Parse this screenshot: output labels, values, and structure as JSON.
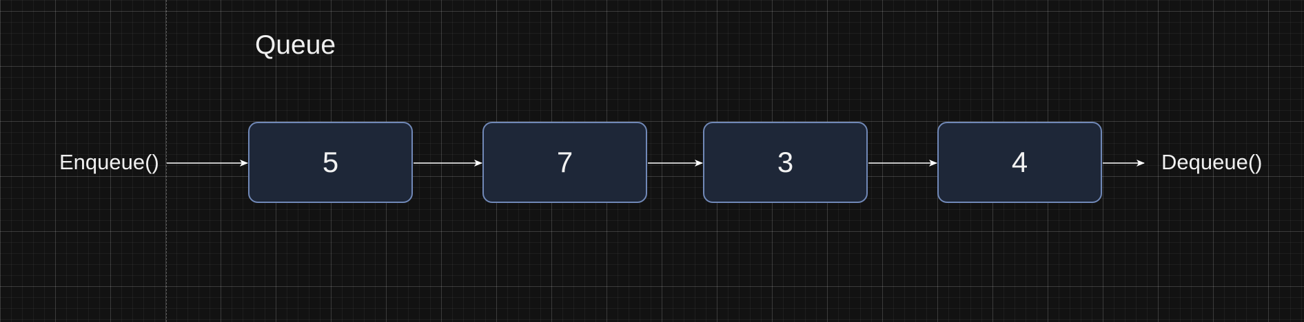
{
  "diagram": {
    "title": "Queue",
    "enqueue_label": "Enqueue()",
    "dequeue_label": "Dequeue()",
    "nodes": [
      "5",
      "7",
      "3",
      "4"
    ]
  },
  "colors": {
    "background": "#121212",
    "node_fill": "#1e2738",
    "node_border": "#7189b8",
    "text": "#f2f2f2",
    "arrow": "#ffffff"
  }
}
